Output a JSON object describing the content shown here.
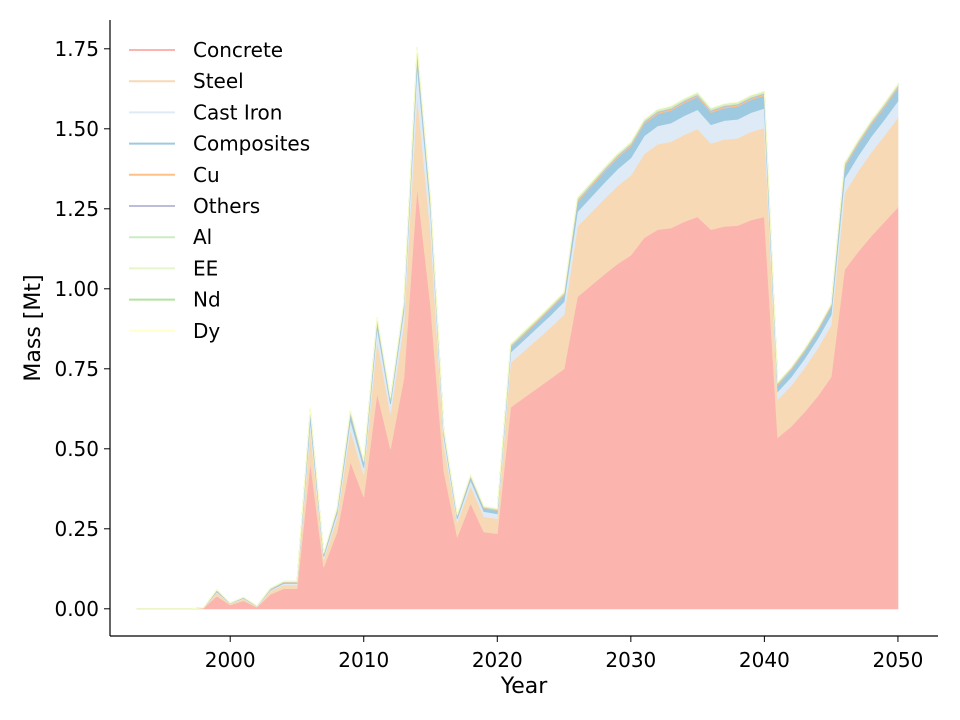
{
  "chart_data": {
    "type": "area",
    "stacked": true,
    "xlabel": "Year",
    "ylabel": "Mass [Mt]",
    "xlim": [
      1991,
      2053
    ],
    "ylim": [
      -0.085,
      1.84
    ],
    "xticks": [
      2000,
      2010,
      2020,
      2030,
      2040,
      2050
    ],
    "xtick_labels": [
      "2000",
      "2010",
      "2020",
      "2030",
      "2040",
      "2050"
    ],
    "yticks": [
      0,
      0.25,
      0.5,
      0.75,
      1.0,
      1.25,
      1.5,
      1.75
    ],
    "ytick_labels": [
      "0.00",
      "0.25",
      "0.50",
      "0.75",
      "1.00",
      "1.25",
      "1.50",
      "1.75"
    ],
    "legend_position": "top-left",
    "x": [
      1993,
      1994,
      1995,
      1996,
      1997,
      1998,
      1999,
      2000,
      2001,
      2002,
      2003,
      2004,
      2005,
      2006,
      2007,
      2008,
      2009,
      2010,
      2011,
      2012,
      2013,
      2014,
      2015,
      2016,
      2017,
      2018,
      2019,
      2020,
      2021,
      2022,
      2023,
      2024,
      2025,
      2026,
      2027,
      2028,
      2029,
      2030,
      2031,
      2032,
      2033,
      2034,
      2035,
      2036,
      2037,
      2038,
      2039,
      2040,
      2041,
      2042,
      2043,
      2044,
      2045,
      2046,
      2047,
      2048,
      2049,
      2050
    ],
    "series": [
      {
        "name": "Concrete",
        "color": "#fbb4ae",
        "values": [
          0,
          0,
          0,
          0,
          0,
          0.002,
          0.04,
          0.012,
          0.025,
          0.005,
          0.045,
          0.063,
          0.063,
          0.46,
          0.13,
          0.24,
          0.46,
          0.35,
          0.675,
          0.5,
          0.72,
          1.32,
          0.95,
          0.43,
          0.225,
          0.33,
          0.24,
          0.235,
          0.63,
          0.66,
          0.69,
          0.72,
          0.75,
          0.975,
          1.01,
          1.045,
          1.078,
          1.105,
          1.16,
          1.185,
          1.19,
          1.21,
          1.225,
          1.185,
          1.195,
          1.198,
          1.215,
          1.225,
          0.535,
          0.57,
          0.615,
          0.665,
          0.725,
          1.06,
          1.115,
          1.165,
          1.21,
          1.255
        ]
      },
      {
        "name": "Steel",
        "color": "#f7d9b6",
        "values": [
          0,
          0,
          0,
          0,
          0,
          0.001,
          0.01,
          0.004,
          0.006,
          0.002,
          0.01,
          0.012,
          0.012,
          0.1,
          0.025,
          0.045,
          0.1,
          0.07,
          0.165,
          0.11,
          0.17,
          0.29,
          0.23,
          0.085,
          0.045,
          0.055,
          0.048,
          0.047,
          0.14,
          0.146,
          0.153,
          0.16,
          0.17,
          0.22,
          0.228,
          0.236,
          0.244,
          0.25,
          0.262,
          0.267,
          0.27,
          0.272,
          0.275,
          0.27,
          0.272,
          0.273,
          0.276,
          0.278,
          0.12,
          0.128,
          0.138,
          0.15,
          0.162,
          0.24,
          0.252,
          0.262,
          0.27,
          0.28
        ]
      },
      {
        "name": "Cast Iron",
        "color": "#deebf7",
        "values": [
          0,
          0,
          0,
          0,
          0,
          0,
          0.003,
          0.001,
          0.002,
          0.001,
          0.003,
          0.004,
          0.004,
          0.03,
          0.008,
          0.013,
          0.03,
          0.021,
          0.04,
          0.03,
          0.042,
          0.09,
          0.065,
          0.026,
          0.011,
          0.017,
          0.016,
          0.015,
          0.032,
          0.034,
          0.036,
          0.038,
          0.04,
          0.046,
          0.048,
          0.05,
          0.052,
          0.054,
          0.056,
          0.057,
          0.058,
          0.059,
          0.06,
          0.058,
          0.059,
          0.059,
          0.06,
          0.061,
          0.024,
          0.026,
          0.028,
          0.03,
          0.032,
          0.045,
          0.047,
          0.049,
          0.05,
          0.052
        ]
      },
      {
        "name": "Composites",
        "color": "#9ecae1",
        "values": [
          0,
          0,
          0,
          0,
          0,
          0,
          0.003,
          0.001,
          0.002,
          0.001,
          0.002,
          0.003,
          0.003,
          0.025,
          0.007,
          0.01,
          0.02,
          0.015,
          0.02,
          0.012,
          0.015,
          0.04,
          0.025,
          0.012,
          0.008,
          0.01,
          0.01,
          0.01,
          0.015,
          0.017,
          0.018,
          0.02,
          0.02,
          0.03,
          0.032,
          0.034,
          0.035,
          0.036,
          0.038,
          0.038,
          0.039,
          0.04,
          0.04,
          0.038,
          0.039,
          0.04,
          0.04,
          0.04,
          0.02,
          0.021,
          0.022,
          0.023,
          0.025,
          0.035,
          0.036,
          0.037,
          0.038,
          0.04
        ]
      },
      {
        "name": "Cu",
        "color": "#fdc086",
        "values": [
          0,
          0,
          0,
          0,
          0,
          0,
          0.001,
          0,
          0.001,
          0,
          0.001,
          0.001,
          0.001,
          0.003,
          0.001,
          0.002,
          0.003,
          0.002,
          0.003,
          0.002,
          0.003,
          0.005,
          0.004,
          0.002,
          0.002,
          0.002,
          0.002,
          0.002,
          0.003,
          0.003,
          0.003,
          0.003,
          0.003,
          0.004,
          0.004,
          0.004,
          0.004,
          0.004,
          0.004,
          0.004,
          0.004,
          0.004,
          0.004,
          0.004,
          0.004,
          0.004,
          0.004,
          0.004,
          0.003,
          0.003,
          0.003,
          0.003,
          0.003,
          0.004,
          0.004,
          0.004,
          0.004,
          0.004
        ]
      },
      {
        "name": "Others",
        "color": "#bcbddc",
        "values": [
          0,
          0,
          0,
          0,
          0,
          0,
          0.001,
          0,
          0,
          0,
          0.001,
          0.001,
          0.001,
          0.002,
          0.001,
          0.001,
          0.002,
          0.001,
          0.002,
          0.002,
          0.002,
          0.003,
          0.003,
          0.001,
          0.001,
          0.001,
          0.001,
          0.001,
          0.002,
          0.002,
          0.002,
          0.002,
          0.002,
          0.003,
          0.003,
          0.003,
          0.003,
          0.003,
          0.003,
          0.003,
          0.003,
          0.003,
          0.003,
          0.003,
          0.003,
          0.003,
          0.003,
          0.003,
          0.002,
          0.002,
          0.002,
          0.002,
          0.002,
          0.003,
          0.003,
          0.003,
          0.003,
          0.003
        ]
      },
      {
        "name": "Al",
        "color": "#ccebc5",
        "values": [
          0,
          0,
          0,
          0,
          0,
          0,
          0.001,
          0,
          0,
          0,
          0.001,
          0.001,
          0.001,
          0.003,
          0.001,
          0.002,
          0.002,
          0.002,
          0.003,
          0.002,
          0.003,
          0.004,
          0.003,
          0.002,
          0.001,
          0.002,
          0.002,
          0.002,
          0.002,
          0.002,
          0.002,
          0.002,
          0.002,
          0.003,
          0.003,
          0.003,
          0.003,
          0.003,
          0.003,
          0.003,
          0.003,
          0.003,
          0.003,
          0.003,
          0.003,
          0.003,
          0.003,
          0.003,
          0.002,
          0.002,
          0.002,
          0.002,
          0.002,
          0.003,
          0.003,
          0.003,
          0.003,
          0.003
        ]
      },
      {
        "name": "EE",
        "color": "#e6f5c9",
        "values": [
          0,
          0,
          0,
          0,
          0,
          0,
          0.001,
          0,
          0,
          0,
          0.001,
          0.001,
          0.001,
          0.002,
          0.001,
          0.001,
          0.002,
          0.001,
          0.002,
          0.001,
          0.002,
          0.003,
          0.002,
          0.001,
          0.001,
          0.001,
          0.001,
          0.001,
          0.002,
          0.002,
          0.002,
          0.002,
          0.002,
          0.002,
          0.002,
          0.002,
          0.002,
          0.002,
          0.002,
          0.002,
          0.002,
          0.002,
          0.002,
          0.002,
          0.002,
          0.002,
          0.002,
          0.002,
          0.001,
          0.001,
          0.001,
          0.001,
          0.001,
          0.002,
          0.002,
          0.002,
          0.002,
          0.002
        ]
      },
      {
        "name": "Nd",
        "color": "#b3e2a0",
        "values": [
          0,
          0,
          0,
          0,
          0,
          0,
          0,
          0,
          0,
          0,
          0,
          0,
          0,
          0.001,
          0,
          0,
          0.001,
          0.001,
          0.001,
          0.001,
          0.001,
          0.001,
          0.001,
          0,
          0,
          0,
          0,
          0,
          0.001,
          0.001,
          0.001,
          0.001,
          0.001,
          0.001,
          0.001,
          0.001,
          0.001,
          0.001,
          0.001,
          0.001,
          0.001,
          0.001,
          0.001,
          0.001,
          0.001,
          0.001,
          0.001,
          0.001,
          0.001,
          0.001,
          0.001,
          0.001,
          0.001,
          0.001,
          0.001,
          0.001,
          0.001,
          0.001
        ]
      },
      {
        "name": "Dy",
        "color": "#ffffcc",
        "values": [
          0,
          0,
          0,
          0,
          0,
          0,
          0,
          0,
          0,
          0,
          0,
          0,
          0,
          0,
          0,
          0,
          0,
          0,
          0,
          0,
          0,
          0,
          0,
          0,
          0,
          0,
          0,
          0,
          0,
          0,
          0,
          0,
          0,
          0,
          0,
          0,
          0,
          0,
          0,
          0,
          0,
          0,
          0,
          0,
          0,
          0,
          0,
          0,
          0,
          0,
          0,
          0,
          0,
          0,
          0,
          0,
          0,
          0
        ]
      }
    ]
  }
}
